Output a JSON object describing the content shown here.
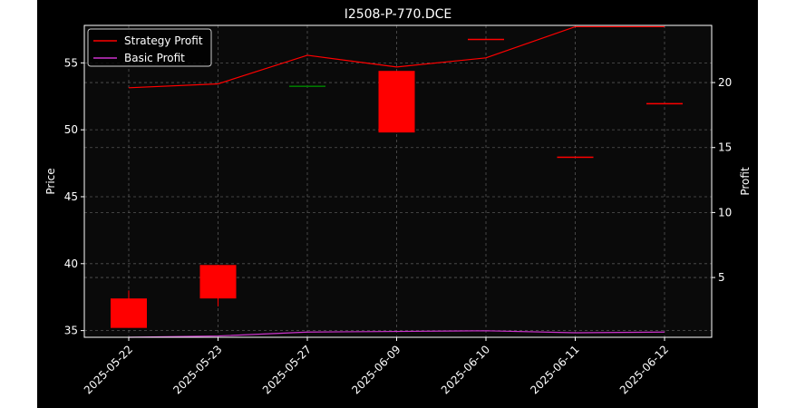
{
  "chart_data": {
    "type": "candlestick",
    "title": "I2508-P-770.DCE",
    "xlabel": "",
    "ylabel": "Price",
    "ylabel_right": "Profit",
    "categories": [
      "2025-05-22",
      "2025-05-23",
      "2025-05-27",
      "2025-06-09",
      "2025-06-10",
      "2025-06-11",
      "2025-06-12"
    ],
    "ohlc": [
      {
        "open": 37.4,
        "high": 38.0,
        "low": 35.2,
        "close": 35.2
      },
      {
        "open": 39.9,
        "high": 39.9,
        "low": 36.8,
        "close": 37.4
      },
      {
        "open": 53.3,
        "high": 53.3,
        "low": 53.3,
        "close": 53.3
      },
      {
        "open": 54.4,
        "high": 54.4,
        "low": 49.8,
        "close": 49.8
      },
      {
        "open": 56.8,
        "high": 56.8,
        "low": 56.8,
        "close": 56.8
      },
      {
        "open": 48.0,
        "high": 48.0,
        "low": 48.0,
        "close": 48.0
      },
      {
        "open": 52.0,
        "high": 52.0,
        "low": 52.0,
        "close": 52.0
      }
    ],
    "candle_colors": [
      "#ff0000",
      "#ff0000",
      "#008000",
      "#ff0000",
      "#ff0000",
      "#ff0000",
      "#ff0000"
    ],
    "ylim": [
      34.5,
      57.8
    ],
    "yticks": [
      35,
      40,
      45,
      50,
      55
    ],
    "ylim_right": [
      0.4,
      24.4
    ],
    "yticks_right": [
      5,
      10,
      15,
      20
    ],
    "series": [
      {
        "name": "Strategy Profit",
        "axis": "right",
        "color": "#ff0000",
        "values": [
          19.6,
          19.9,
          22.1,
          21.2,
          21.9,
          24.3,
          24.3
        ]
      },
      {
        "name": "Basic Profit",
        "axis": "right",
        "color": "#cc33cc",
        "values": [
          0.4,
          0.5,
          0.8,
          0.85,
          0.9,
          0.75,
          0.8
        ]
      }
    ],
    "grid": true,
    "legend": "top-left"
  },
  "colors": {
    "page_background": "#ffffff",
    "figure_background": "#000000",
    "axes_background": "#0a0a0a",
    "text": "#ffffff",
    "grid": "#555555"
  }
}
